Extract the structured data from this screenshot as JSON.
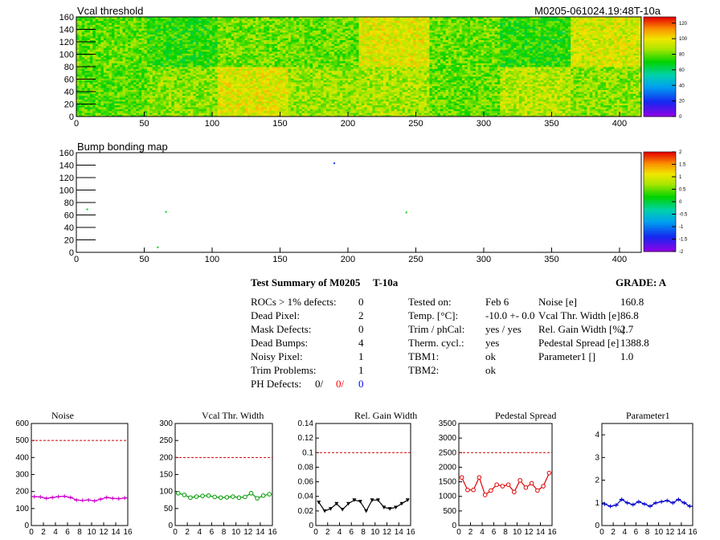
{
  "header": {
    "map1_title": "Vcal threshold",
    "module_id": "M0205-061024.19:48T-10a",
    "map2_title": "Bump bonding map"
  },
  "map_axes": {
    "x_ticks": [
      "0",
      "50",
      "100",
      "150",
      "200",
      "250",
      "300",
      "350",
      "400"
    ],
    "y_ticks": [
      "0",
      "20",
      "40",
      "60",
      "80",
      "100",
      "120",
      "140",
      "160"
    ],
    "colz1_ticks": [
      "0",
      "20",
      "40",
      "60",
      "80",
      "100",
      "120"
    ],
    "colz2_ticks": [
      "-2",
      "-1.5",
      "-1",
      "-0.5",
      "0",
      "0.5",
      "1",
      "1.5",
      "2"
    ]
  },
  "summary": {
    "title": "Test Summary of M0205",
    "test_label": "T-10a",
    "grade": "GRADE:  A",
    "left": [
      {
        "label": "ROCs > 1% defects:",
        "value": "0"
      },
      {
        "label": "Dead Pixel:",
        "value": "2"
      },
      {
        "label": "Mask Defects:",
        "value": "0"
      },
      {
        "label": "Dead Bumps:",
        "value": "4"
      },
      {
        "label": "Noisy Pixel:",
        "value": "1"
      },
      {
        "label": "Trim Problems:",
        "value": "1"
      }
    ],
    "ph_defects": {
      "label": "PH Defects:",
      "v1": "0/",
      "v2": "0/",
      "v3": "0"
    },
    "middle": [
      {
        "label": "Tested on:",
        "value": "Feb 6"
      },
      {
        "label": "Temp. [°C]:",
        "value": "-10.0 +- 0.0"
      },
      {
        "label": "Trim / phCal:",
        "value": "yes / yes"
      },
      {
        "label": "Therm. cycl.:",
        "value": "yes"
      },
      {
        "label": "TBM1:",
        "value": "ok"
      },
      {
        "label": "TBM2:",
        "value": "ok"
      }
    ],
    "right": [
      {
        "label": "Noise [e]",
        "value": "160.8"
      },
      {
        "label": "Vcal Thr. Width [e]",
        "value": "86.8"
      },
      {
        "label": "Rel. Gain Width [%]",
        "value": "2.7"
      },
      {
        "label": "Pedestal Spread [e]",
        "value": "1388.8"
      },
      {
        "label": "Parameter1 []",
        "value": "1.0"
      }
    ]
  },
  "colors": {
    "noise": "#cc00cc",
    "vcal": "#009900",
    "gain": "#000000",
    "pedestal": "#dd0000",
    "param": "#0000cc",
    "limit": "#cc0000"
  },
  "chart_data": [
    {
      "type": "heatmap",
      "title": "Vcal threshold",
      "xlim": [
        0,
        416
      ],
      "ylim": [
        0,
        160
      ],
      "zlim": [
        0,
        128
      ],
      "roc_means_bottom": [
        78,
        84,
        96,
        86,
        88,
        80,
        90,
        84
      ],
      "roc_means_top": [
        80,
        74,
        82,
        80,
        96,
        80,
        74,
        94
      ],
      "colorbar_ticks": [
        0,
        20,
        40,
        60,
        80,
        100,
        120
      ]
    },
    {
      "type": "heatmap",
      "title": "Bump bonding map",
      "xlim": [
        0,
        416
      ],
      "ylim": [
        0,
        160
      ],
      "zlim": [
        -2,
        2
      ],
      "points": [
        {
          "x": 190,
          "y": 143,
          "z": -1.3
        },
        {
          "x": 8,
          "y": 69,
          "z": 0.2
        },
        {
          "x": 66,
          "y": 65,
          "z": 0.2
        },
        {
          "x": 243,
          "y": 64,
          "z": 0.2
        },
        {
          "x": 60,
          "y": 8,
          "z": 0.2
        }
      ],
      "colorbar_ticks": [
        -2,
        -1.5,
        -1,
        -0.5,
        0,
        0.5,
        1,
        1.5,
        2
      ]
    },
    {
      "type": "line",
      "title": "Noise",
      "x": [
        0,
        1,
        2,
        3,
        4,
        5,
        6,
        7,
        8,
        9,
        10,
        11,
        12,
        13,
        14,
        15
      ],
      "values": [
        170,
        168,
        160,
        165,
        170,
        172,
        165,
        150,
        148,
        150,
        145,
        155,
        165,
        160,
        158,
        162
      ],
      "limit": 500,
      "ylim": [
        0,
        600
      ],
      "yticks": [
        "0",
        "100",
        "200",
        "300",
        "400",
        "500",
        "600"
      ],
      "xticks": [
        "0",
        "2",
        "4",
        "6",
        "8",
        "10",
        "12",
        "14",
        "16"
      ]
    },
    {
      "type": "line",
      "title": "Vcal Thr. Width",
      "x": [
        0,
        1,
        2,
        3,
        4,
        5,
        6,
        7,
        8,
        9,
        10,
        11,
        12,
        13,
        14,
        15
      ],
      "values": [
        95,
        90,
        82,
        85,
        87,
        88,
        84,
        82,
        83,
        85,
        82,
        84,
        95,
        80,
        88,
        92
      ],
      "limit": 200,
      "ylim": [
        0,
        300
      ],
      "yticks": [
        "0",
        "50",
        "100",
        "150",
        "200",
        "250",
        "300"
      ],
      "xticks": [
        "0",
        "2",
        "4",
        "6",
        "8",
        "10",
        "12",
        "14",
        "16"
      ]
    },
    {
      "type": "line",
      "title": "Rel. Gain Width",
      "x": [
        0,
        1,
        2,
        3,
        4,
        5,
        6,
        7,
        8,
        9,
        10,
        11,
        12,
        13,
        14,
        15
      ],
      "values": [
        0.032,
        0.02,
        0.023,
        0.03,
        0.022,
        0.03,
        0.035,
        0.033,
        0.02,
        0.035,
        0.035,
        0.025,
        0.023,
        0.025,
        0.03,
        0.035
      ],
      "limit": 0.1,
      "ylim": [
        0,
        0.14
      ],
      "yticks": [
        "0",
        "0.02",
        "0.04",
        "0.06",
        "0.08",
        "0.1",
        "0.12",
        "0.14"
      ],
      "xticks": [
        "0",
        "2",
        "4",
        "6",
        "8",
        "10",
        "12",
        "14",
        "16"
      ]
    },
    {
      "type": "line",
      "title": "Pedestal Spread",
      "x": [
        0,
        1,
        2,
        3,
        4,
        5,
        6,
        7,
        8,
        9,
        10,
        11,
        12,
        13,
        14,
        15
      ],
      "values": [
        1650,
        1220,
        1220,
        1650,
        1050,
        1200,
        1400,
        1350,
        1400,
        1150,
        1550,
        1300,
        1450,
        1200,
        1350,
        1800
      ],
      "limit": 2500,
      "ylim": [
        0,
        3500
      ],
      "yticks": [
        "0",
        "500",
        "1000",
        "1500",
        "2000",
        "2500",
        "3000",
        "3500"
      ],
      "xticks": [
        "0",
        "2",
        "4",
        "6",
        "8",
        "10",
        "12",
        "14",
        "16"
      ]
    },
    {
      "type": "line",
      "title": "Parameter1",
      "x": [
        0,
        1,
        2,
        3,
        4,
        5,
        6,
        7,
        8,
        9,
        10,
        11,
        12,
        13,
        14,
        15
      ],
      "values": [
        0.95,
        0.85,
        0.9,
        1.15,
        1.0,
        0.92,
        1.05,
        0.95,
        0.85,
        1.0,
        1.05,
        1.1,
        1.0,
        1.15,
        1.0,
        0.85
      ],
      "limit": null,
      "ylim": [
        0,
        4.5
      ],
      "yticks": [
        "0",
        "1",
        "2",
        "3",
        "4"
      ],
      "xticks": [
        "0",
        "2",
        "4",
        "6",
        "8",
        "10",
        "12",
        "14",
        "16"
      ]
    }
  ]
}
